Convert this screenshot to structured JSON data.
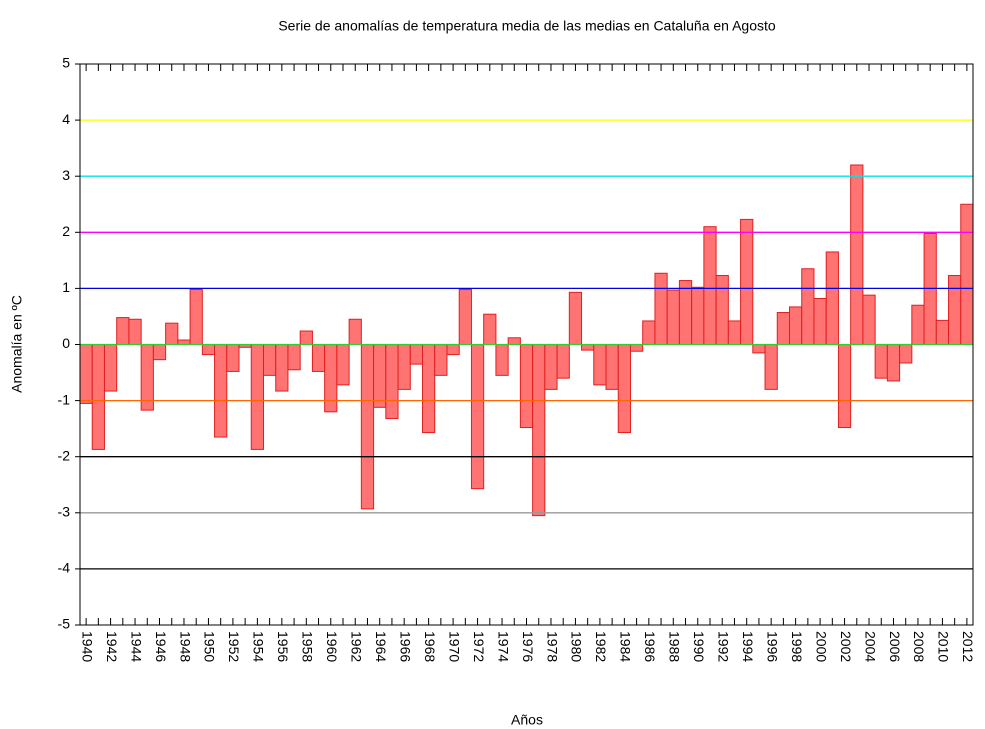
{
  "chart_data": {
    "type": "bar",
    "title": "Serie de anomalías de temperatura media de las medias en Cataluña en Agosto",
    "x_label": "Años",
    "y_label": "Anomalía en ºC",
    "categories": [
      "1940",
      null,
      "1942",
      null,
      "1944",
      null,
      "1946",
      null,
      "1948",
      null,
      "1950",
      null,
      "1952",
      null,
      "1954",
      null,
      "1956",
      null,
      "1958",
      null,
      "1960",
      null,
      "1962",
      null,
      "1964",
      null,
      "1966",
      null,
      "1968",
      null,
      "1970",
      null,
      "1972",
      null,
      "1974",
      null,
      "1976",
      null,
      "1978",
      null,
      "1980",
      null,
      "1982",
      null,
      "1984",
      null,
      "1986",
      null,
      "1988",
      null,
      "1990",
      null,
      "1992",
      null,
      "1994",
      null,
      "1996",
      null,
      "1998",
      null,
      "2000",
      null,
      "2002",
      null,
      "2004",
      null,
      "2006",
      null,
      "2008",
      null,
      "2010",
      null,
      "2012"
    ],
    "values": [
      -1.05,
      -1.87,
      -0.83,
      0.48,
      0.45,
      -1.17,
      -0.27,
      0.38,
      0.08,
      0.98,
      -0.18,
      -1.65,
      -0.48,
      -0.05,
      -1.87,
      -0.55,
      -0.83,
      -0.45,
      0.24,
      -0.48,
      -1.2,
      -0.72,
      0.45,
      -2.93,
      -1.12,
      -1.32,
      -0.8,
      -0.35,
      -1.57,
      -0.55,
      -0.18,
      0.98,
      -2.57,
      0.54,
      -0.55,
      0.12,
      -1.48,
      -3.05,
      -0.8,
      -0.6,
      0.93,
      -0.1,
      -0.72,
      -0.8,
      -1.57,
      -0.12,
      0.42,
      1.27,
      0.97,
      1.14,
      1.02,
      2.1,
      1.23,
      0.42,
      2.23,
      -0.15,
      -0.8,
      0.57,
      0.67,
      1.35,
      0.82,
      1.65,
      -1.48,
      3.2,
      0.88,
      -0.6,
      -0.65,
      -0.33,
      0.7,
      1.98,
      0.43,
      1.23,
      2.5
    ],
    "color": "#ff7373",
    "edge_color": "#e02020",
    "ylim": [
      -5,
      5
    ],
    "yticks": [
      -5,
      -4,
      -3,
      -2,
      -1,
      0,
      1,
      2,
      3,
      4,
      5
    ],
    "reference_lines": [
      {
        "value": 4,
        "color": "#ffff00"
      },
      {
        "value": 3,
        "color": "#00e5e5"
      },
      {
        "value": 2,
        "color": "#ff00ff"
      },
      {
        "value": 1,
        "color": "#0000e0"
      },
      {
        "value": 0,
        "color": "#33cc33"
      },
      {
        "value": -1,
        "color": "#ff6600"
      },
      {
        "value": -2,
        "color": "#000000"
      },
      {
        "value": -3,
        "color": "#999999"
      },
      {
        "value": -4,
        "color": "#000000"
      }
    ]
  }
}
